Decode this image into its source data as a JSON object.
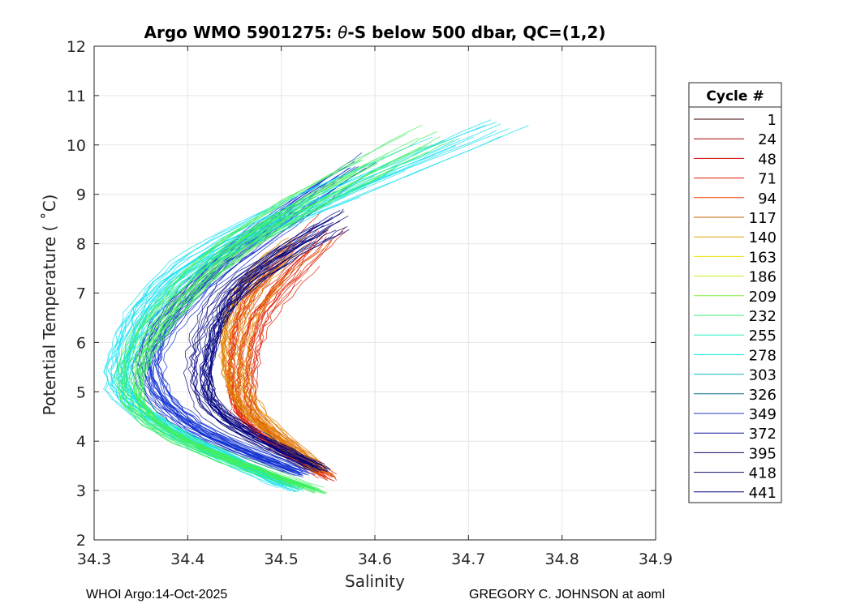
{
  "chart_data": {
    "type": "line",
    "title": "Argo WMO 5901275: θ-S below 500 dbar,  QC=(1,2)",
    "title_parts": {
      "prefix": "Argo WMO 5901275: ",
      "symbol": "θ",
      "suffix": "-S below 500 dbar,  QC=(1,2)"
    },
    "xlabel": "Salinity",
    "ylabel": "Potential Temperature ( ˚C)",
    "xlim": [
      34.3,
      34.9
    ],
    "ylim": [
      2,
      12
    ],
    "xticks": [
      "34.3",
      "34.4",
      "34.5",
      "34.6",
      "34.7",
      "34.8",
      "34.9"
    ],
    "yticks": [
      "2",
      "3",
      "4",
      "5",
      "6",
      "7",
      "8",
      "9",
      "10",
      "11",
      "12"
    ],
    "grid": true,
    "legend": {
      "title": "Cycle #",
      "placement": "right-outside",
      "entries": [
        {
          "label": "1",
          "color": "#3a0000"
        },
        {
          "label": "24",
          "color": "#a80000"
        },
        {
          "label": "48",
          "color": "#cc0000"
        },
        {
          "label": "71",
          "color": "#e31a00"
        },
        {
          "label": "94",
          "color": "#f04000"
        },
        {
          "label": "117",
          "color": "#c86400"
        },
        {
          "label": "140",
          "color": "#e0a000"
        },
        {
          "label": "163",
          "color": "#f0e000"
        },
        {
          "label": "186",
          "color": "#c0f020"
        },
        {
          "label": "209",
          "color": "#80f040"
        },
        {
          "label": "232",
          "color": "#40f070"
        },
        {
          "label": "255",
          "color": "#20f0c0"
        },
        {
          "label": "278",
          "color": "#10e8e0"
        },
        {
          "label": "303",
          "color": "#10b8d0"
        },
        {
          "label": "326",
          "color": "#0a7090"
        },
        {
          "label": "349",
          "color": "#2030c0"
        },
        {
          "label": "372",
          "color": "#1018a0"
        },
        {
          "label": "395",
          "color": "#0a0a60"
        },
        {
          "label": "418",
          "color": "#101070"
        },
        {
          "label": "441",
          "color": "#000080"
        }
      ]
    },
    "series_envelope": [
      {
        "name": "red early cycles",
        "color": "#e02000",
        "points": [
          [
            34.555,
            3.25
          ],
          [
            34.47,
            4.4
          ],
          [
            34.46,
            5.5
          ],
          [
            34.48,
            6.8
          ],
          [
            34.56,
            8.5
          ]
        ]
      },
      {
        "name": "orange",
        "color": "#e08000",
        "points": [
          [
            34.55,
            3.3
          ],
          [
            34.47,
            4.6
          ],
          [
            34.45,
            5.8
          ],
          [
            34.47,
            7.0
          ],
          [
            34.53,
            8.0
          ]
        ]
      },
      {
        "name": "dark blue late",
        "color": "#000080",
        "points": [
          [
            34.545,
            3.4
          ],
          [
            34.43,
            4.6
          ],
          [
            34.415,
            5.8
          ],
          [
            34.45,
            7.2
          ],
          [
            34.56,
            8.6
          ]
        ]
      },
      {
        "name": "blue",
        "color": "#1030d0",
        "points": [
          [
            34.53,
            3.3
          ],
          [
            34.4,
            4.4
          ],
          [
            34.36,
            5.7
          ],
          [
            34.43,
            7.5
          ],
          [
            34.59,
            9.7
          ]
        ]
      },
      {
        "name": "cyan",
        "color": "#10e0f0",
        "points": [
          [
            34.52,
            3.0
          ],
          [
            34.36,
            4.5
          ],
          [
            34.33,
            5.7
          ],
          [
            34.42,
            7.8
          ],
          [
            34.76,
            10.65
          ]
        ]
      },
      {
        "name": "green",
        "color": "#40f060",
        "points": [
          [
            34.545,
            2.95
          ],
          [
            34.37,
            4.3
          ],
          [
            34.345,
            5.7
          ],
          [
            34.45,
            8.0
          ],
          [
            34.665,
            10.3
          ]
        ]
      }
    ]
  },
  "footer": {
    "left": "WHOI Argo:14-Oct-2025",
    "right": "GREGORY C. JOHNSON at aoml"
  }
}
